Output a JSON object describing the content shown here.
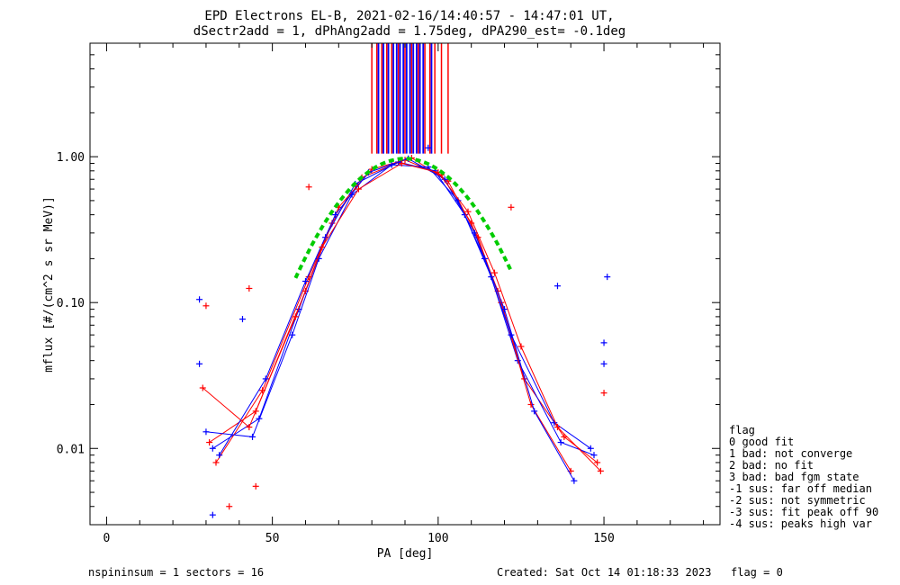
{
  "header": {
    "title_line1": "EPD Electrons EL-B, 2021-02-16/14:40:57 - 14:47:01 UT,",
    "title_line2": "dSectr2add = 1, dPhAng2add = 1.75deg, dPA290_est=  -0.1deg"
  },
  "footer": {
    "left": "nspininsum =  1  sectors = 16",
    "created": "Created: Sat Oct 14 01:18:33 2023",
    "flag": "flag = 0"
  },
  "legend": {
    "title": "flag",
    "items": [
      " 0 good fit",
      " 1 bad: not converge",
      " 2 bad: no fit",
      " 3 bad: bad fgm state",
      "-1 sus: far off median",
      "-2 sus: not symmetric",
      "-3 sus: fit peak off 90",
      "-4 sus: peaks high var"
    ]
  },
  "colors": {
    "series_red": "#ff0000",
    "series_blue": "#0000ff",
    "fit": "#00cc00",
    "axis": "#000000"
  },
  "chart_data": {
    "type": "line",
    "xlabel": "PA [deg]",
    "ylabel": "mflux [#/(cm^2 s sr MeV)]",
    "xlim": [
      -5,
      185
    ],
    "ylim": [
      0.003,
      6
    ],
    "ylog": true,
    "x_ticks": [
      0,
      50,
      100,
      150
    ],
    "x_tick_labels": [
      "0",
      "50",
      "100",
      "150"
    ],
    "y_ticks": [
      0.01,
      0.1,
      1.0
    ],
    "y_tick_labels": [
      "0.01",
      "0.10",
      "1.00"
    ],
    "grid": false,
    "legend_position": "right-outside",
    "series": [
      {
        "color": "red",
        "x": [
          31,
          45,
          60,
          68,
          77,
          90,
          101,
          110,
          118,
          126,
          138,
          148
        ],
        "y": [
          0.011,
          0.018,
          0.12,
          0.35,
          0.72,
          0.95,
          0.75,
          0.35,
          0.12,
          0.03,
          0.012,
          0.008
        ]
      },
      {
        "color": "blue",
        "x": [
          32,
          46,
          58,
          66,
          75,
          88,
          99,
          108,
          116,
          124,
          137,
          147
        ],
        "y": [
          0.01,
          0.016,
          0.09,
          0.28,
          0.65,
          0.92,
          0.8,
          0.4,
          0.15,
          0.04,
          0.011,
          0.009
        ]
      },
      {
        "color": "red",
        "x": [
          33,
          47,
          61,
          70,
          80,
          92,
          103,
          112,
          119,
          128,
          140
        ],
        "y": [
          0.008,
          0.025,
          0.15,
          0.45,
          0.82,
          0.98,
          0.68,
          0.28,
          0.1,
          0.02,
          0.007
        ]
      },
      {
        "color": "blue",
        "x": [
          30,
          44,
          56,
          64,
          74,
          86,
          97,
          106,
          114,
          122,
          135,
          146
        ],
        "y": [
          0.013,
          0.012,
          0.06,
          0.2,
          0.55,
          0.88,
          0.85,
          0.5,
          0.2,
          0.06,
          0.015,
          0.01
        ]
      },
      {
        "color": "blue",
        "x": [
          34,
          48,
          60,
          69,
          79,
          91,
          102,
          111,
          120,
          129,
          141
        ],
        "y": [
          0.009,
          0.03,
          0.14,
          0.4,
          0.78,
          0.97,
          0.7,
          0.3,
          0.09,
          0.018,
          0.006
        ]
      },
      {
        "color": "red",
        "x": [
          29,
          43,
          57,
          65,
          76,
          89,
          100,
          109,
          117,
          125,
          136,
          149
        ],
        "y": [
          0.026,
          0.014,
          0.08,
          0.24,
          0.6,
          0.9,
          0.78,
          0.42,
          0.16,
          0.05,
          0.014,
          0.007
        ]
      }
    ],
    "scatter_points": [
      {
        "color": "blue",
        "x": 28,
        "y": 0.105
      },
      {
        "color": "red",
        "x": 30,
        "y": 0.095
      },
      {
        "color": "blue",
        "x": 28,
        "y": 0.038
      },
      {
        "color": "blue",
        "x": 41,
        "y": 0.077
      },
      {
        "color": "red",
        "x": 43,
        "y": 0.125
      },
      {
        "color": "blue",
        "x": 151,
        "y": 0.15
      },
      {
        "color": "blue",
        "x": 150,
        "y": 0.053
      },
      {
        "color": "blue",
        "x": 150,
        "y": 0.038
      },
      {
        "color": "red",
        "x": 150,
        "y": 0.024
      },
      {
        "color": "blue",
        "x": 136,
        "y": 0.13
      },
      {
        "color": "red",
        "x": 61,
        "y": 0.62
      },
      {
        "color": "red",
        "x": 122,
        "y": 0.45
      },
      {
        "color": "blue",
        "x": 97,
        "y": 1.15
      },
      {
        "color": "red",
        "x": 37,
        "y": 0.004
      },
      {
        "color": "blue",
        "x": 32,
        "y": 0.0035
      },
      {
        "color": "red",
        "x": 45,
        "y": 0.0055
      }
    ],
    "vertical_lines": {
      "y_bottom": 1.05,
      "red_x": [
        80,
        81.5,
        83,
        84.5,
        86,
        88,
        90,
        92,
        94,
        96,
        97.5,
        99,
        101,
        103
      ],
      "blue_x": [
        82,
        83.5,
        85,
        86.5,
        87.5,
        88.5,
        89.5,
        90.5,
        91.5,
        92.5,
        93.5,
        94.5,
        95.5,
        98
      ]
    },
    "fit_curve": {
      "center": 90,
      "peak": 0.97,
      "sigma": 17,
      "x_range": [
        57,
        122
      ]
    }
  }
}
